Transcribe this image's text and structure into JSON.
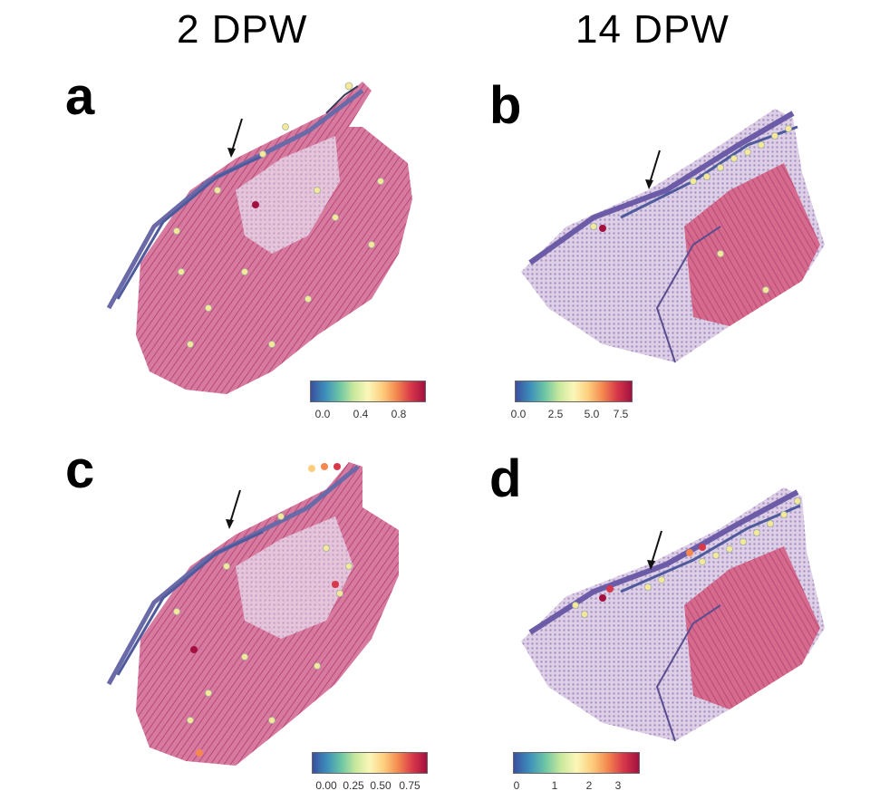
{
  "columns": {
    "left": "2 DPW",
    "right": "14 DPW"
  },
  "panels": {
    "a": {
      "letter": "a",
      "colorbar_ticks": [
        "0.0",
        "0.4",
        "0.8"
      ]
    },
    "b": {
      "letter": "b",
      "colorbar_ticks": [
        "0.0",
        "2.5",
        "5.0",
        "7.5"
      ]
    },
    "c": {
      "letter": "c",
      "colorbar_ticks": [
        "0.00",
        "0.25",
        "0.50",
        "0.75"
      ]
    },
    "d": {
      "letter": "d",
      "colorbar_ticks": [
        "0",
        "1",
        "2",
        "3"
      ]
    }
  },
  "colors": {
    "tissue_pink": "#c9597f",
    "tissue_light": "#e9c9d9",
    "tissue_purple": "#7d6aa3",
    "spot_low": "#3b4fa0",
    "spot_mid": "#fbf7b8",
    "spot_high": "#a3103f"
  }
}
